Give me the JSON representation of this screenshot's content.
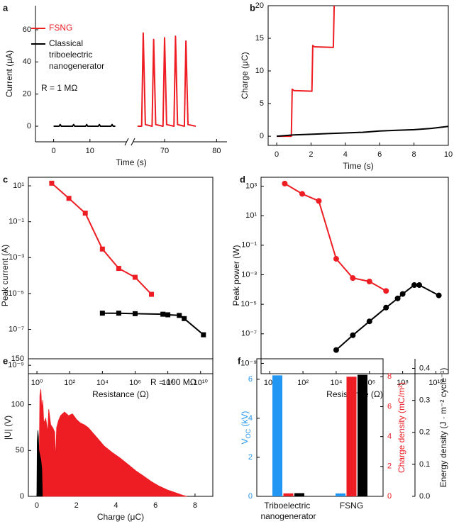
{
  "chart_data": [
    {
      "type": "line",
      "panel": "a",
      "xlabel": "Time (s)",
      "ylabel": "Current (μA)",
      "annotation": "R = 1 MΩ",
      "legend": "upper left",
      "xlim": [
        -5,
        82
      ],
      "xbreak": [
        20,
        64
      ],
      "xticks": [
        0,
        10,
        70,
        80
      ],
      "ylim": [
        -9.7,
        75
      ],
      "yticks": [
        0,
        20,
        40,
        60
      ],
      "series": [
        {
          "name": "FSNG",
          "color": "#ee1d23",
          "x": [
            64.8,
            65.6,
            65.9,
            66.3,
            67.6,
            67.9,
            68.3,
            69.7,
            70.0,
            70.4,
            71.8,
            72.1,
            72.5,
            73.8,
            74.1,
            74.5,
            76.0
          ],
          "values": [
            0,
            0,
            58,
            1,
            0,
            54,
            1,
            0,
            55,
            1,
            0,
            56,
            1,
            0,
            53,
            1,
            0
          ]
        },
        {
          "name": "Classical triboelectric nanogenerator",
          "color": "#000000",
          "x": [
            0,
            1.5,
            1.8,
            2.1,
            5.2,
            5.5,
            5.8,
            8.8,
            9.1,
            9.4,
            12.3,
            12.6,
            12.9,
            15.8,
            16.1,
            16.4,
            17
          ],
          "values": [
            0,
            0,
            1,
            0,
            0,
            1,
            0,
            0,
            1,
            0,
            0,
            1,
            0,
            0,
            1,
            0,
            0
          ]
        }
      ]
    },
    {
      "type": "line",
      "panel": "b",
      "xlabel": "Time (s)",
      "ylabel": "Charge (μC)",
      "xlim": [
        -0.5,
        10
      ],
      "xticks": [
        0,
        2,
        4,
        6,
        8,
        10
      ],
      "ylim": [
        -1.4,
        20
      ],
      "yticks": [
        0,
        5,
        10,
        15,
        20
      ],
      "series": [
        {
          "color": "#ee1d23",
          "x": [
            0,
            0.85,
            0.9,
            1.0,
            2.05,
            2.1,
            2.2,
            3.3,
            3.35
          ],
          "values": [
            0,
            0,
            7.2,
            7.0,
            6.9,
            13.9,
            13.7,
            13.6,
            20
          ]
        },
        {
          "color": "#000000",
          "x": [
            0,
            1,
            2,
            3,
            4,
            5,
            6,
            7,
            8,
            9,
            10
          ],
          "values": [
            0,
            0.2,
            0.3,
            0.4,
            0.5,
            0.6,
            0.8,
            0.9,
            1.0,
            1.2,
            1.5
          ]
        }
      ]
    },
    {
      "type": "line",
      "panel": "c",
      "xlabel": "Resistance (Ω)",
      "ylabel": "Peak current (A)",
      "xlog": true,
      "ylog": true,
      "marker": "square",
      "xlim": [
        0.3,
        56000000000
      ],
      "xticks": [
        {
          "value": 1,
          "label": "10⁰"
        },
        {
          "value": 100,
          "label": "10²"
        },
        {
          "value": 10000,
          "label": "10⁴"
        },
        {
          "value": 1000000,
          "label": "10⁶"
        },
        {
          "value": 100000000,
          "label": "10⁸"
        },
        {
          "value": 10000000000,
          "label": "10¹⁰"
        }
      ],
      "ylim": [
        3.4e-10,
        30
      ],
      "yticks": [
        {
          "value": 1e-09,
          "label": "10⁻⁹"
        },
        {
          "value": 1e-07,
          "label": "10⁻⁷"
        },
        {
          "value": 1e-05,
          "label": "10⁻⁵"
        },
        {
          "value": 0.001,
          "label": "10⁻³"
        },
        {
          "value": 0.1,
          "label": "10⁻¹"
        },
        {
          "value": 10,
          "label": "10¹"
        }
      ],
      "series": [
        {
          "color": "#ee1d23",
          "x": [
            8,
            90,
            900,
            10000,
            100000,
            1000000,
            10000000
          ],
          "values": [
            14,
            2,
            0.3,
            0.003,
            0.00025,
            8e-05,
            9e-06
          ]
        },
        {
          "color": "#000000",
          "x": [
            10000,
            100000,
            1000000,
            50000000,
            100000000,
            500000000,
            1000000000,
            15000000000
          ],
          "values": [
            8e-07,
            8e-07,
            7.5e-07,
            7e-07,
            6.5e-07,
            6e-07,
            4e-07,
            5e-08
          ]
        }
      ]
    },
    {
      "type": "line",
      "panel": "d",
      "xlabel": "Resistance (Ω)",
      "ylabel": "Peak power (W)",
      "xlog": true,
      "ylog": true,
      "marker": "circle",
      "xlim": [
        0.3,
        56000000000
      ],
      "xticks": [
        {
          "value": 1,
          "label": "10⁰"
        },
        {
          "value": 100,
          "label": "10²"
        },
        {
          "value": 10000,
          "label": "10⁴"
        },
        {
          "value": 1000000,
          "label": "10⁶"
        },
        {
          "value": 100000000,
          "label": "10⁸"
        },
        {
          "value": 10000000000,
          "label": "10¹⁰"
        }
      ],
      "ylim": [
        2e-10,
        4000
      ],
      "yticks": [
        {
          "value": 1e-09,
          "label": "10⁻⁹"
        },
        {
          "value": 1e-07,
          "label": "10⁻⁷"
        },
        {
          "value": 1e-05,
          "label": "10⁻⁵"
        },
        {
          "value": 0.001,
          "label": "10⁻³"
        },
        {
          "value": 0.1,
          "label": "10⁻¹"
        },
        {
          "value": 10,
          "label": "10¹"
        },
        {
          "value": 1000,
          "label": "10³"
        }
      ],
      "series": [
        {
          "color": "#ee1d23",
          "x": [
            8,
            90,
            900,
            10000,
            100000,
            1000000,
            10000000
          ],
          "values": [
            1500,
            300,
            100,
            0.012,
            0.0006,
            0.00035,
            8e-05
          ]
        },
        {
          "color": "#000000",
          "x": [
            10000,
            100000,
            1000000,
            10000000,
            50000000,
            100000000,
            500000000,
            1000000000,
            15000000000
          ],
          "values": [
            8e-09,
            8e-08,
            7e-07,
            6e-06,
            2.5e-05,
            5e-05,
            0.0002,
            0.0002,
            4e-05
          ]
        }
      ]
    },
    {
      "type": "area",
      "panel": "e",
      "xlabel": "Charge (μC)",
      "ylabel": "|U| (V)",
      "annotation": "R = 100 MΩ",
      "xlim": [
        -0.43,
        8.9
      ],
      "xticks": [
        0,
        2,
        4,
        6,
        8
      ],
      "ylim": [
        0,
        150
      ],
      "yticks": [
        0,
        50,
        100,
        150
      ],
      "series": [
        {
          "color": "#ee1d23",
          "x": [
            0.1,
            0.15,
            0.2,
            0.25,
            0.3,
            0.35,
            0.45,
            0.55,
            0.6,
            0.7,
            0.8,
            0.9,
            0.95,
            1.0,
            1.1,
            1.2,
            1.3,
            1.4,
            1.6,
            1.8,
            2.0,
            2.2,
            2.4,
            2.6,
            2.8,
            3.0,
            3.4,
            3.8,
            4.2,
            4.6,
            5.0,
            5.4,
            5.8,
            6.2,
            6.6,
            7.0,
            7.4,
            7.6
          ],
          "values": [
            0,
            110,
            117,
            95,
            105,
            80,
            85,
            70,
            95,
            78,
            75,
            70,
            40,
            75,
            83,
            88,
            90,
            92,
            88,
            90,
            84,
            80,
            78,
            75,
            70,
            65,
            55,
            48,
            42,
            35,
            28,
            22,
            16,
            11,
            7,
            4,
            1,
            0
          ]
        },
        {
          "color": "#000000",
          "x": [
            0,
            0.02,
            0.05,
            0.08,
            0.1,
            0.15,
            0.2,
            0.25,
            0.28
          ],
          "values": [
            0,
            60,
            72,
            65,
            50,
            45,
            40,
            30,
            0
          ]
        }
      ]
    },
    {
      "type": "bar",
      "panel": "f",
      "ylabel": "V",
      "ylabel_sub": "OC",
      "ylabel_unit": " (kV)",
      "y2label": "Charge density (mC/m²)",
      "y3label": "Energy density (J · m⁻² cycle⁻¹)",
      "categories": [
        "Triboelectric nanogenerator",
        "FSNG"
      ],
      "ylim": [
        0,
        7.05
      ],
      "yticks": [
        0,
        2,
        4,
        6
      ],
      "y2lim": [
        0,
        9.2
      ],
      "y2ticks": [
        0,
        2,
        4,
        6,
        8
      ],
      "y3lim": [
        0,
        0.43
      ],
      "y3ticks": [
        {
          "value": 0,
          "label": "0.0"
        },
        0.1,
        0.2,
        0.3,
        0.4
      ],
      "series": [
        {
          "color": "#2196f3",
          "axis": "y",
          "values": [
            6.2,
            0.15
          ]
        },
        {
          "color": "#ee1d23",
          "axis": "y2",
          "values": [
            0.2,
            8.0
          ]
        },
        {
          "color": "#000000",
          "axis": "y3",
          "values": [
            0.01,
            0.38
          ]
        }
      ]
    }
  ]
}
